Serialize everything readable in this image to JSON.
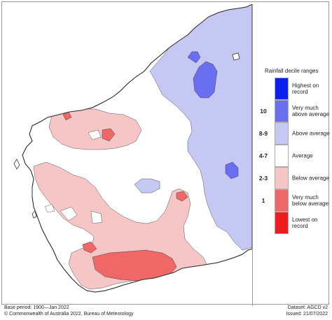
{
  "legend": {
    "title": "Rainfall decile ranges",
    "items": [
      {
        "code": "",
        "label": "Highest on record",
        "color": "#0b1ff0"
      },
      {
        "code": "10",
        "label": "Very much above average",
        "color": "#6a6ef0"
      },
      {
        "code": "8-9",
        "label": "Above average",
        "color": "#c6c8f4"
      },
      {
        "code": "4-7",
        "label": "Average",
        "color": "#ffffff"
      },
      {
        "code": "2-3",
        "label": "Below average",
        "color": "#f6c6c6"
      },
      {
        "code": "1",
        "label": "Very much below average",
        "color": "#ef6767"
      },
      {
        "code": "",
        "label": "Lowest on record",
        "color": "#ee1c1c"
      }
    ]
  },
  "footer": {
    "base_period": "Base period: 1900—Jan 2022",
    "copyright": "© Commonwealth of Australia 2022, Bureau of Meteorology",
    "dataset": "Dataset: AGCD v2",
    "issued": "Issued: 21/07/2022"
  }
}
